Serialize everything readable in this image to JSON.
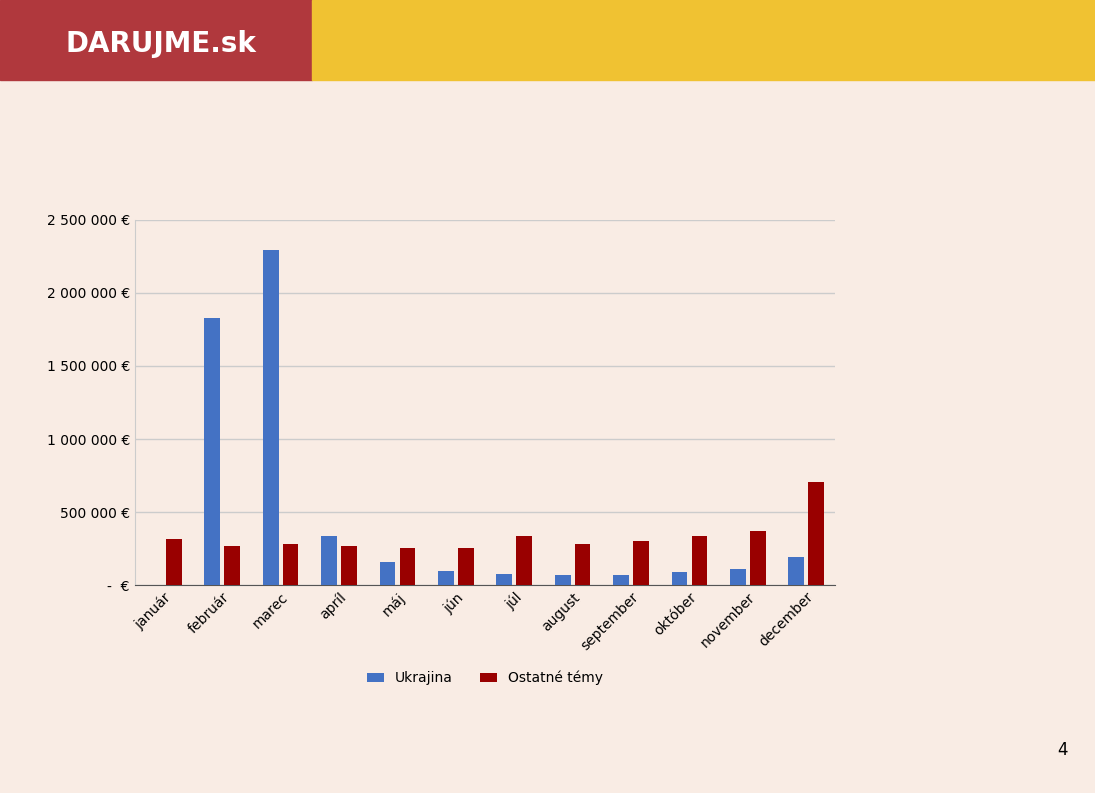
{
  "header": {
    "logo": "DARUJME.sk"
  },
  "page_number": 4,
  "chart_data": {
    "type": "bar",
    "categories": [
      "január",
      "február",
      "marec",
      "apríl",
      "máj",
      "jún",
      "júl",
      "august",
      "september",
      "október",
      "november",
      "december"
    ],
    "series": [
      {
        "name": "Ukrajina",
        "color": "#4472c4",
        "values": [
          0,
          1830000,
          2290000,
          335000,
          160000,
          100000,
          80000,
          70000,
          70000,
          90000,
          110000,
          190000
        ]
      },
      {
        "name": "Ostatné témy",
        "color": "#990000",
        "values": [
          315000,
          265000,
          285000,
          265000,
          255000,
          255000,
          335000,
          285000,
          305000,
          335000,
          370000,
          705000
        ]
      }
    ],
    "ylim": [
      0,
      2500000
    ],
    "yticks": [
      {
        "value": 0,
        "label": "-  €"
      },
      {
        "value": 500000,
        "label": "500 000 €"
      },
      {
        "value": 1000000,
        "label": "1 000 000 €"
      },
      {
        "value": 1500000,
        "label": "1 500 000 €"
      },
      {
        "value": 2000000,
        "label": "2 000 000 €"
      },
      {
        "value": 2500000,
        "label": "2 500 000 €"
      }
    ],
    "grid": true,
    "legend": "bottom"
  }
}
